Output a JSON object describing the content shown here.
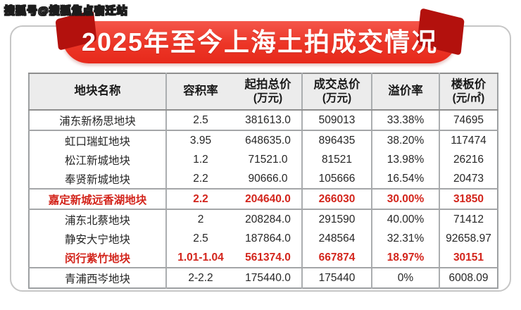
{
  "watermark": "搜狐号@搜狐焦点宿迁站",
  "banner": {
    "title": "2025年至今上海土拍成交情况"
  },
  "colors": {
    "banner_red": "#ec3526",
    "fold_dark_red": "#b3110d",
    "highlight_red": "#d3251c",
    "header_bg": "#ececec",
    "grid_gray": "#a4a6a8",
    "text_dark": "#262626"
  },
  "chart_data": {
    "type": "table",
    "title": "2025年至今上海土拍成交情况",
    "columns": [
      {
        "label": "地块名称",
        "sub": ""
      },
      {
        "label": "容积率",
        "sub": ""
      },
      {
        "label": "起拍总价",
        "sub": "(万元)"
      },
      {
        "label": "成交总价",
        "sub": "(万元)"
      },
      {
        "label": "溢价率",
        "sub": ""
      },
      {
        "label": "楼板价",
        "sub": "(元/㎡)"
      }
    ],
    "rows": [
      {
        "name": "浦东新杨思地块",
        "plot_ratio": "2.5",
        "start_price": "381613.0",
        "deal_price": "509013",
        "premium": "33.38%",
        "floor_price": "74695",
        "highlight": false,
        "group_end": true
      },
      {
        "name": "虹口瑞虹地块",
        "plot_ratio": "3.95",
        "start_price": "648635.0",
        "deal_price": "896435",
        "premium": "38.20%",
        "floor_price": "117474",
        "highlight": false,
        "group_end": false
      },
      {
        "name": "松江新城地块",
        "plot_ratio": "1.2",
        "start_price": "71521.0",
        "deal_price": "81521",
        "premium": "13.98%",
        "floor_price": "26216",
        "highlight": false,
        "group_end": false
      },
      {
        "name": "奉贤新城地块",
        "plot_ratio": "2.2",
        "start_price": "90666.0",
        "deal_price": "105666",
        "premium": "16.54%",
        "floor_price": "20473",
        "highlight": false,
        "group_end": true
      },
      {
        "name": "嘉定新城远香湖地块",
        "plot_ratio": "2.2",
        "start_price": "204640.0",
        "deal_price": "266030",
        "premium": "30.00%",
        "floor_price": "31850",
        "highlight": true,
        "group_end": true
      },
      {
        "name": "浦东北蔡地块",
        "plot_ratio": "2",
        "start_price": "208284.0",
        "deal_price": "291590",
        "premium": "40.00%",
        "floor_price": "71412",
        "highlight": false,
        "group_end": false
      },
      {
        "name": "静安大宁地块",
        "plot_ratio": "2.5",
        "start_price": "187864.0",
        "deal_price": "248564",
        "premium": "32.31%",
        "floor_price": "92658.97",
        "highlight": false,
        "group_end": false
      },
      {
        "name": "闵行紫竹地块",
        "plot_ratio": "1.01-1.04",
        "start_price": "561374.0",
        "deal_price": "667874",
        "premium": "18.97%",
        "floor_price": "30151",
        "highlight": true,
        "group_end": true
      },
      {
        "name": "青浦西岑地块",
        "plot_ratio": "2-2.2",
        "start_price": "175440.0",
        "deal_price": "175440",
        "premium": "0%",
        "floor_price": "6008.09",
        "highlight": false,
        "group_end": false
      }
    ],
    "highlighted_rows": [
      4,
      7
    ],
    "legend_position": "none",
    "grid": true
  }
}
